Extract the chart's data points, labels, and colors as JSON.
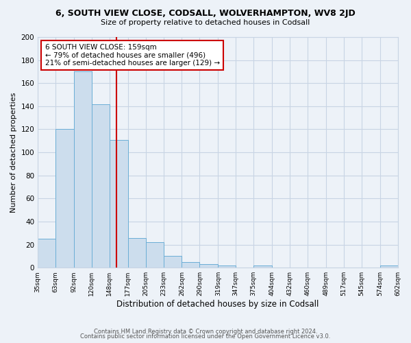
{
  "title": "6, SOUTH VIEW CLOSE, CODSALL, WOLVERHAMPTON, WV8 2JD",
  "subtitle": "Size of property relative to detached houses in Codsall",
  "xlabel": "Distribution of detached houses by size in Codsall",
  "ylabel": "Number of detached properties",
  "bin_edges": [
    35,
    63,
    92,
    120,
    148,
    177,
    205,
    233,
    262,
    290,
    319,
    347,
    375,
    404,
    432,
    460,
    489,
    517,
    545,
    574,
    602
  ],
  "bar_heights": [
    25,
    120,
    170,
    142,
    111,
    26,
    22,
    10,
    5,
    3,
    2,
    0,
    2,
    0,
    0,
    0,
    0,
    0,
    0,
    2
  ],
  "bar_color": "#ccdded",
  "bar_edge_color": "#6baed6",
  "grid_color": "#c8d4e4",
  "bg_color": "#edf2f8",
  "vline_x": 159,
  "vline_color": "#cc0000",
  "annotation_text": "6 SOUTH VIEW CLOSE: 159sqm\n← 79% of detached houses are smaller (496)\n21% of semi-detached houses are larger (129) →",
  "annotation_box_color": "#ffffff",
  "annotation_box_edge": "#cc0000",
  "ylim": [
    0,
    200
  ],
  "yticks": [
    0,
    20,
    40,
    60,
    80,
    100,
    120,
    140,
    160,
    180,
    200
  ],
  "footer1": "Contains HM Land Registry data © Crown copyright and database right 2024.",
  "footer2": "Contains public sector information licensed under the Open Government Licence v3.0.",
  "tick_labels": [
    "35sqm",
    "63sqm",
    "92sqm",
    "120sqm",
    "148sqm",
    "177sqm",
    "205sqm",
    "233sqm",
    "262sqm",
    "290sqm",
    "319sqm",
    "347sqm",
    "375sqm",
    "404sqm",
    "432sqm",
    "460sqm",
    "489sqm",
    "517sqm",
    "545sqm",
    "574sqm",
    "602sqm"
  ]
}
